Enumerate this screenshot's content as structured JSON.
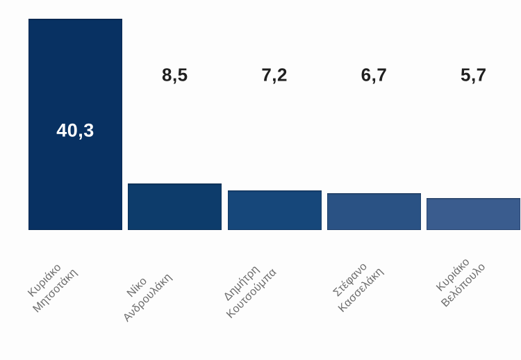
{
  "chart_data": {
    "type": "bar",
    "title": "",
    "xlabel": "",
    "ylabel": "",
    "categories": [
      "Κυριάκο\nΜητσοτάκη",
      "Νίκο\nΑνδρουλάκη",
      "Δημήτρη\nΚουτσούμπα",
      "Στέφανο\nΚασσελάκη",
      "Κυριάκο\nΒελόπουλο"
    ],
    "values": [
      40.3,
      8.5,
      7.2,
      6.7,
      5.7
    ],
    "value_labels": [
      "40,3",
      "8,5",
      "7,2",
      "6,7",
      "5,7"
    ],
    "bar_colors": [
      "#083162",
      "#0d3c6b",
      "#16477a",
      "#2a5284",
      "#3a5c8e"
    ],
    "value_label_color": "#1f1f1f",
    "inside_value_label_color": "#ffffff",
    "tick_label_color": "#6b6b6b",
    "background_color": "#fdfdfd",
    "ylim": [
      0,
      43
    ],
    "grid": false,
    "legend": null,
    "axis_lines": false,
    "tick_rotation_deg": 45,
    "decimal_separator": ","
  }
}
